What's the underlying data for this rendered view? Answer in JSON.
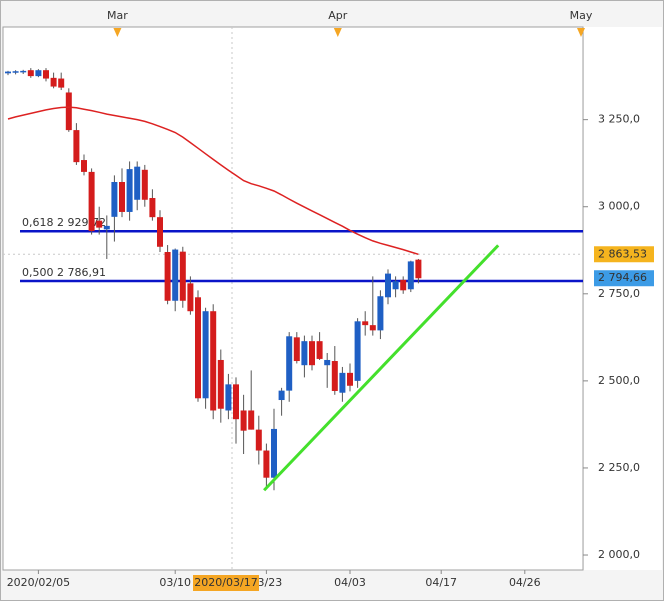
{
  "chart_data": {
    "type": "candlestick",
    "categories": [
      null,
      null,
      null,
      null,
      "2020/02/05",
      null,
      null,
      null,
      null,
      null,
      null,
      null,
      null,
      null,
      null,
      null,
      null,
      null,
      null,
      null,
      null,
      null,
      "03/10",
      null,
      null,
      null,
      null,
      null,
      null,
      null,
      null,
      null,
      null,
      null,
      "03/23",
      null,
      null,
      null,
      null,
      null,
      null,
      null,
      null,
      null,
      null,
      "04/03",
      null,
      null,
      null,
      null,
      null,
      null,
      null,
      null,
      null,
      null,
      null,
      "04/17",
      null,
      null,
      null,
      null,
      null,
      null,
      null,
      null,
      null,
      null,
      "04/26",
      null,
      null,
      null,
      null,
      null,
      null,
      null
    ],
    "top_categories": [
      null,
      null,
      null,
      null,
      null,
      null,
      null,
      null,
      null,
      null,
      null,
      null,
      null,
      null,
      "Mar",
      null,
      null,
      null,
      null,
      null,
      null,
      null,
      null,
      null,
      null,
      null,
      null,
      null,
      null,
      null,
      null,
      null,
      null,
      null,
      null,
      null,
      null,
      null,
      null,
      null,
      null,
      null,
      null,
      "Apr",
      null,
      null,
      null,
      null,
      null,
      null,
      null,
      null,
      null,
      null,
      null,
      null,
      null,
      null,
      null,
      null,
      null,
      null,
      null,
      null,
      null,
      null,
      null,
      null,
      null,
      null,
      null,
      null,
      null,
      null,
      null,
      "May"
    ],
    "cursor_label": "2020/03/17",
    "open": [
      3383,
      3385,
      3386,
      3392,
      3375,
      3392,
      3370,
      3368,
      3328,
      3220,
      3134,
      3100,
      2960,
      2935,
      2971,
      3071,
      2985,
      3020,
      3106,
      3025,
      2970,
      2870,
      2730,
      2871,
      2780,
      2740,
      2450,
      2700,
      2560,
      2415,
      2490,
      2415,
      2415,
      2360,
      2300,
      2222,
      2445,
      2472,
      2625,
      2545,
      2614,
      2614,
      2545,
      2557,
      2466,
      2523,
      2500,
      2671,
      2660,
      2645,
      2740,
      2763,
      2790,
      2763,
      2848,
      null,
      null,
      null,
      null,
      null,
      null,
      null,
      null,
      null,
      null,
      null,
      null,
      null,
      null,
      null,
      null,
      null,
      null,
      null,
      null,
      null
    ],
    "high": [
      3390,
      3392,
      3393,
      3398,
      3395,
      3398,
      3385,
      3385,
      3340,
      3240,
      3150,
      3110,
      3000,
      2975,
      3090,
      3110,
      3130,
      3130,
      3120,
      3050,
      2990,
      2890,
      2880,
      2885,
      2800,
      2760,
      2710,
      2720,
      2590,
      2520,
      2510,
      2460,
      2530,
      2400,
      2320,
      2420,
      2480,
      2640,
      2640,
      2630,
      2630,
      2640,
      2580,
      2600,
      2540,
      2550,
      2680,
      2700,
      2800,
      2760,
      2820,
      2800,
      2800,
      2845,
      2850,
      null,
      null,
      null,
      null,
      null,
      null,
      null,
      null,
      null,
      null,
      null,
      null,
      null,
      null,
      null,
      null,
      null,
      null,
      null,
      null,
      null
    ],
    "low": [
      3378,
      3380,
      3381,
      3370,
      3372,
      3360,
      3340,
      3335,
      3215,
      3120,
      3090,
      2920,
      2920,
      2850,
      2900,
      2970,
      2960,
      2990,
      3000,
      2960,
      2870,
      2720,
      2700,
      2710,
      2690,
      2440,
      2420,
      2390,
      2380,
      2390,
      2320,
      2290,
      2360,
      2260,
      2190,
      2186,
      2400,
      2440,
      2550,
      2510,
      2530,
      2560,
      2480,
      2460,
      2440,
      2470,
      2480,
      2630,
      2630,
      2620,
      2720,
      2740,
      2750,
      2755,
      2780,
      null,
      null,
      null,
      null,
      null,
      null,
      null,
      null,
      null,
      null,
      null,
      null,
      null,
      null,
      null,
      null,
      null,
      null,
      null,
      null,
      null
    ],
    "close": [
      3388,
      3389,
      3390,
      3375,
      3392,
      3368,
      3345,
      3342,
      3220,
      3128,
      3100,
      2930,
      2940,
      2945,
      3071,
      2985,
      3108,
      3115,
      3020,
      2970,
      2885,
      2730,
      2877,
      2730,
      2700,
      2450,
      2700,
      2415,
      2420,
      2490,
      2390,
      2357,
      2360,
      2300,
      2222,
      2362,
      2472,
      2628,
      2557,
      2614,
      2545,
      2563,
      2560,
      2471,
      2523,
      2486,
      2671,
      2660,
      2645,
      2743,
      2808,
      2786,
      2760,
      2843,
      2794.66,
      null,
      null,
      null,
      null,
      null,
      null,
      null,
      null,
      null,
      null,
      null,
      null,
      null,
      null,
      null,
      null,
      null,
      null,
      null,
      null,
      null
    ],
    "up_color": "#1f5fc4",
    "down_color": "#d41c1c",
    "moving_average": {
      "color": "#dd2222",
      "values": [
        3252,
        3258,
        3263,
        3268,
        3273,
        3278,
        3282,
        3285,
        3286,
        3284,
        3280,
        3276,
        3271,
        3266,
        3262,
        3258,
        3254,
        3250,
        3245,
        3238,
        3230,
        3222,
        3213,
        3200,
        3184,
        3168,
        3152,
        3136,
        3120,
        3105,
        3090,
        3075,
        3066,
        3060,
        3053,
        3045,
        3034,
        3022,
        3010,
        2999,
        2988,
        2977,
        2966,
        2955,
        2944,
        2932,
        2921,
        2911,
        2902,
        2895,
        2889,
        2883,
        2877,
        2870,
        2863.53,
        null,
        null,
        null,
        null,
        null,
        null,
        null,
        null,
        null,
        null,
        null,
        null,
        null,
        null,
        null,
        null,
        null,
        null,
        null,
        null,
        null
      ]
    },
    "levels": [
      {
        "value": 2929.72,
        "label": "0,618 2 929,72"
      },
      {
        "value": 2786.91,
        "label": "0,500 2 786,91"
      }
    ],
    "level_color": "#0a14c8",
    "trendline": {
      "start": [
        33.7,
        2186
      ],
      "end": [
        64.5,
        2889
      ],
      "color": "#44e02c"
    },
    "price_tags": [
      {
        "value": 2863.53,
        "label": "2 863,53",
        "color": "#f5b41e"
      },
      {
        "value": 2794.66,
        "label": "2 794,66",
        "color": "#3c9be6"
      }
    ],
    "ylim": [
      1957,
      3516
    ],
    "yticks": [
      {
        "value": 2000,
        "label": "2 000,0"
      },
      {
        "value": 2250,
        "label": "2 250,0"
      },
      {
        "value": 2500,
        "label": "2 500,0"
      },
      {
        "value": 2750,
        "label": "2 750,0"
      },
      {
        "value": 3000,
        "label": "3 000,0"
      },
      {
        "value": 3250,
        "label": "3 250,0"
      }
    ],
    "grid": false
  }
}
